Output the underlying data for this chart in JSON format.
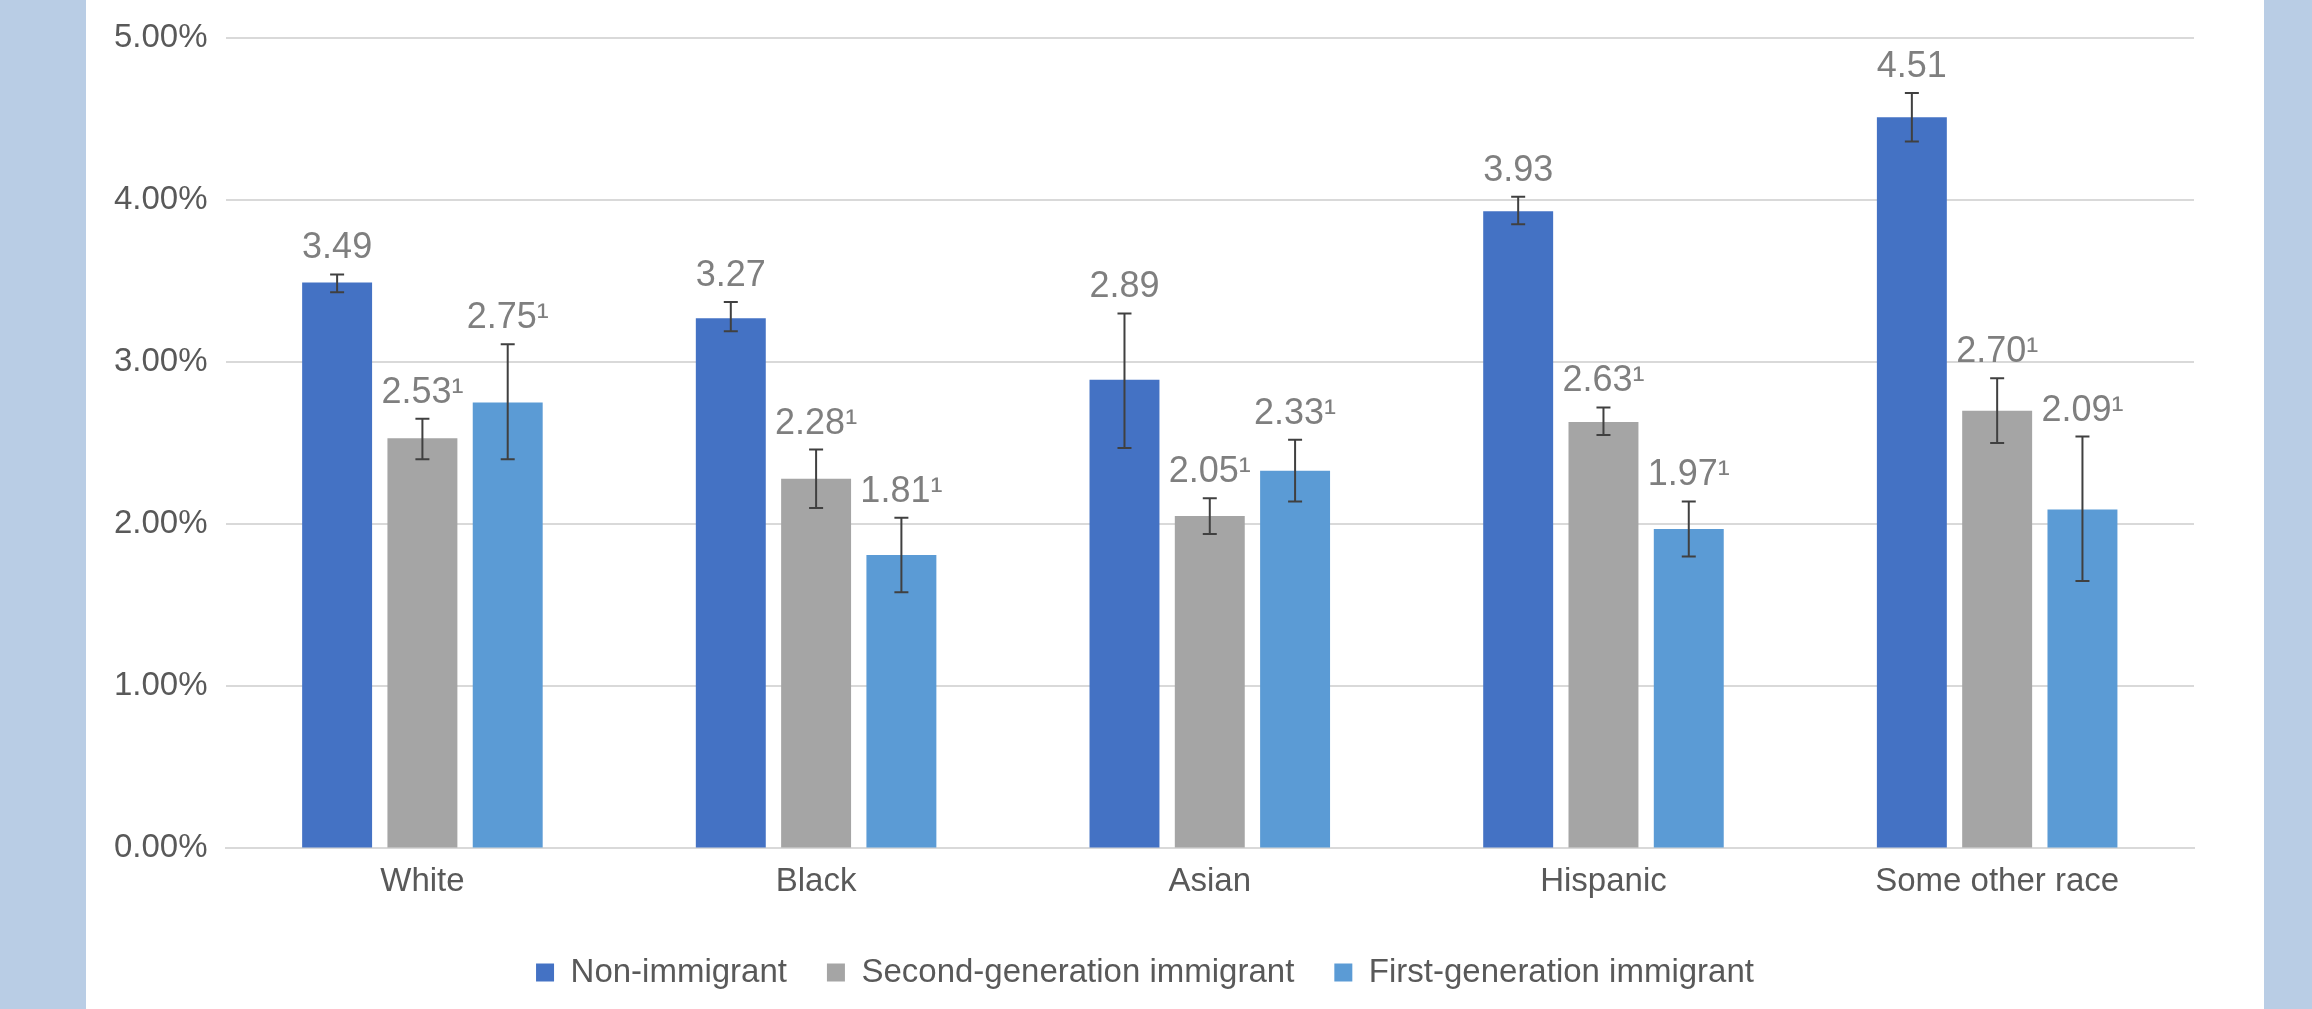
{
  "chart_data": {
    "type": "bar",
    "categories": [
      "White",
      "Black",
      "Asian",
      "Hispanic",
      "Some other race"
    ],
    "series": [
      {
        "name": "Non-immigrant",
        "color": "#4472c4",
        "values": [
          3.49,
          3.27,
          2.89,
          3.93,
          4.51
        ],
        "value_labels": [
          "3.49",
          "3.27",
          "2.89",
          "3.93",
          "4.51"
        ],
        "errors": [
          [
            3.43,
            3.54
          ],
          [
            3.19,
            3.37
          ],
          [
            2.47,
            3.3
          ],
          [
            3.85,
            4.02
          ],
          [
            4.36,
            4.66
          ]
        ]
      },
      {
        "name": "Second-generation immigrant",
        "color": "#a5a5a5",
        "values": [
          2.53,
          2.28,
          2.05,
          2.63,
          2.7
        ],
        "value_labels": [
          "2.53¹",
          "2.28¹",
          "2.05¹",
          "2.63¹",
          "2.70¹"
        ],
        "errors": [
          [
            2.4,
            2.65
          ],
          [
            2.1,
            2.46
          ],
          [
            1.94,
            2.16
          ],
          [
            2.55,
            2.72
          ],
          [
            2.5,
            2.9
          ]
        ]
      },
      {
        "name": "First-generation immigrant",
        "color": "#5b9bd5",
        "values": [
          2.75,
          1.81,
          2.33,
          1.97,
          2.09
        ],
        "value_labels": [
          "2.75¹",
          "1.81¹",
          "2.33¹",
          "1.97¹",
          "2.09¹"
        ],
        "errors": [
          [
            2.4,
            3.11
          ],
          [
            1.58,
            2.04
          ],
          [
            2.14,
            2.52
          ],
          [
            1.8,
            2.14
          ],
          [
            1.65,
            2.54
          ]
        ]
      }
    ],
    "ylim": [
      0,
      5
    ],
    "yticks": [
      {
        "value": 0,
        "label": "0.00%"
      },
      {
        "value": 1,
        "label": "1.00%"
      },
      {
        "value": 2,
        "label": "2.00%"
      },
      {
        "value": 3,
        "label": "3.00%"
      },
      {
        "value": 4,
        "label": "4.00%"
      },
      {
        "value": 5,
        "label": "5.00%"
      }
    ],
    "grid": "y",
    "legend": "bottom"
  }
}
